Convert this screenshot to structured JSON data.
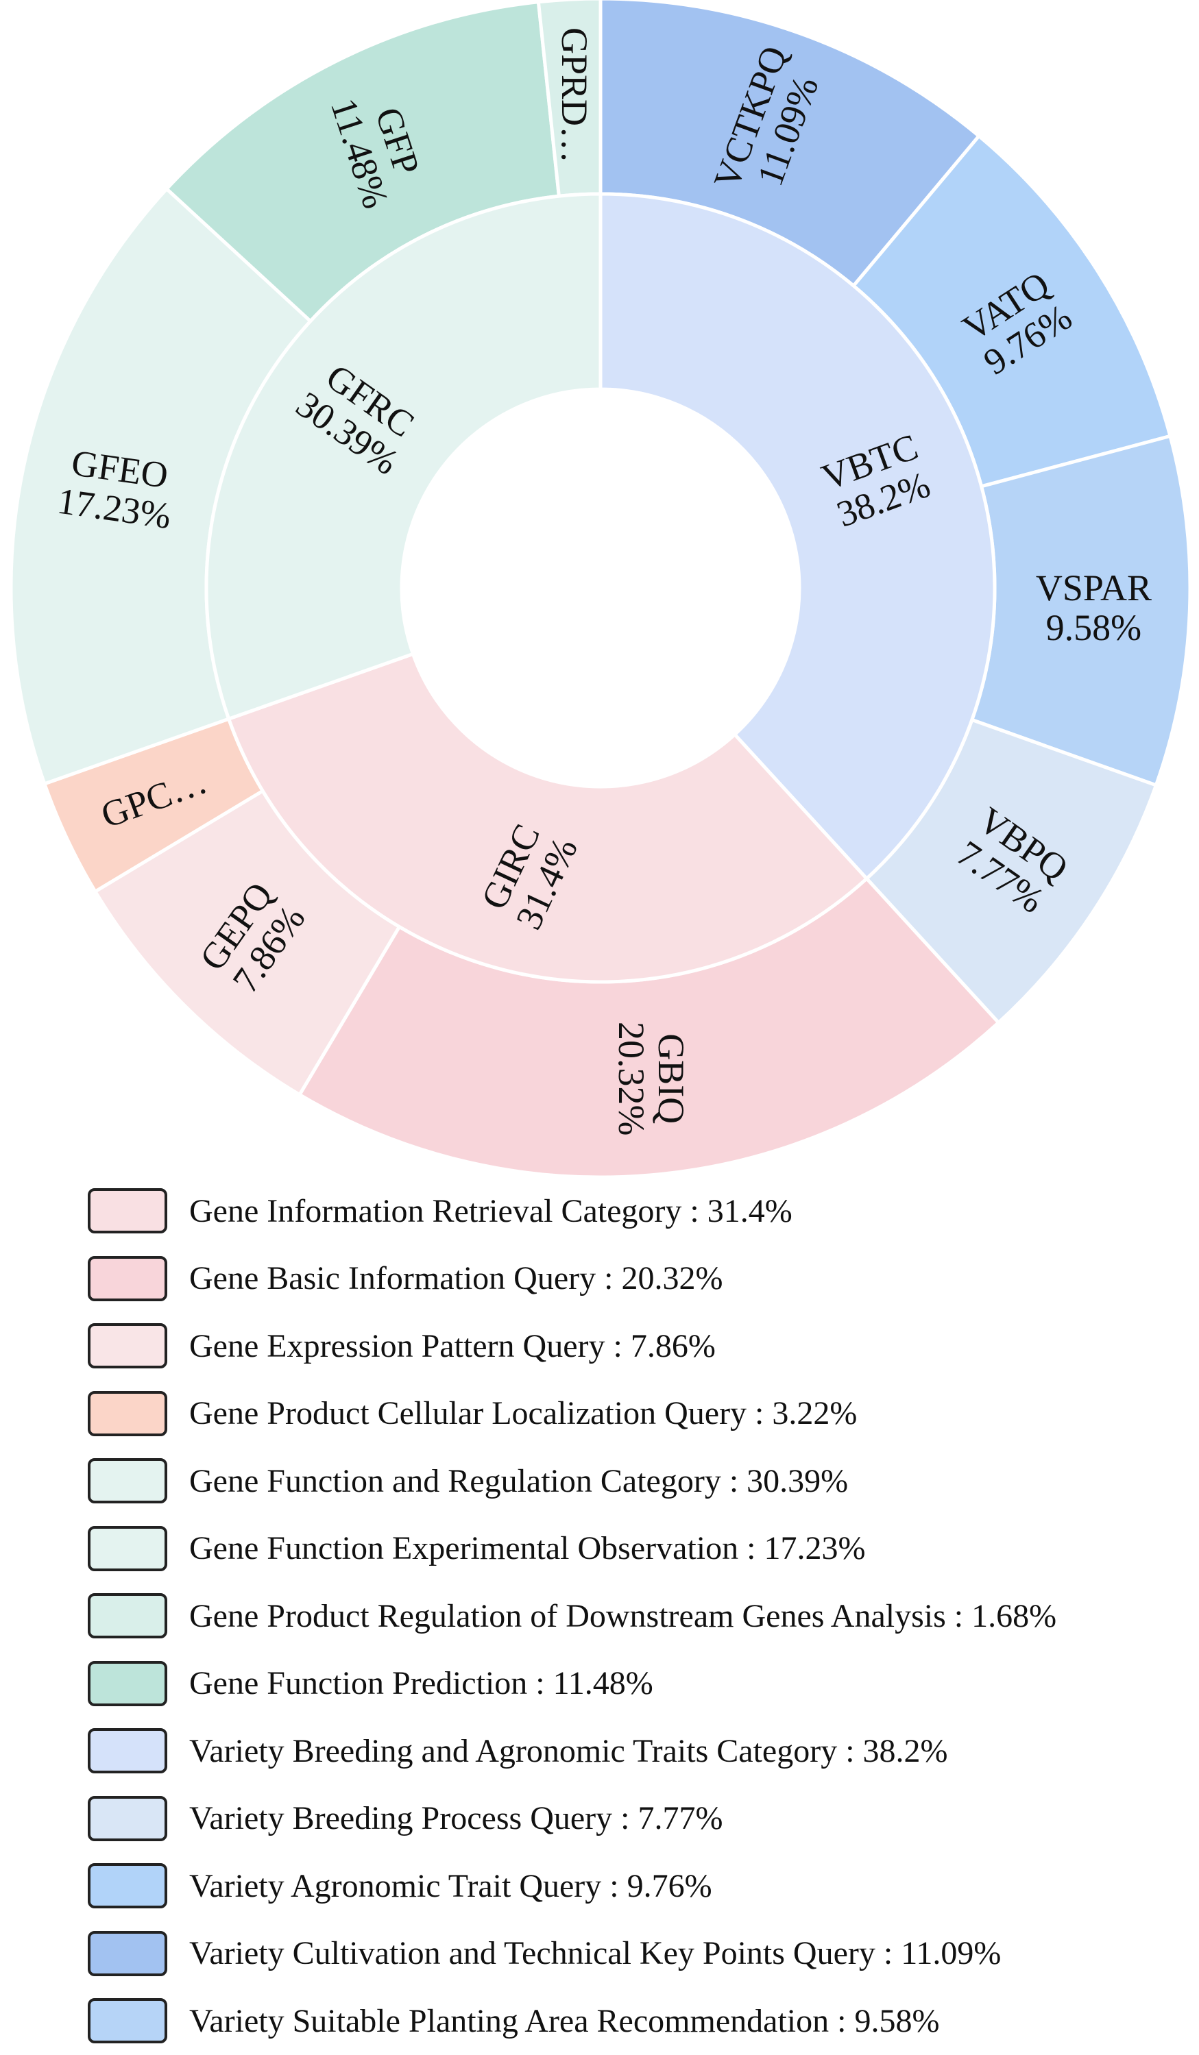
{
  "chart_data": {
    "type": "pie",
    "variant": "nested-donut",
    "start_angle_degrees_clockwise_from_top": 0,
    "inner_ring": [
      {
        "id": "VBTC",
        "label": "VBTC",
        "value_label": "38.2%",
        "value": 38.2,
        "color": "#d5e2fa",
        "name": "Variety Breeding and Agronomic Traits Category",
        "label_rotation": -20
      },
      {
        "id": "GIRC",
        "label": "GIRC",
        "value_label": "31.4%",
        "value": 31.4,
        "color": "#f9e0e3",
        "name": "Gene Information Retrieval Category",
        "label_rotation": -65
      },
      {
        "id": "GFRC",
        "label": "GFRC",
        "value_label": "30.39%",
        "value": 30.39,
        "color": "#e4f3f0",
        "name": "Gene Function and Regulation Category",
        "label_rotation": 35
      }
    ],
    "outer_ring": [
      {
        "id": "VCTKPQ",
        "label": "VCTKPQ",
        "value_label": "11.09%",
        "value": 11.09,
        "color": "#a2c2f1",
        "name": "Variety Cultivation and Technical Key Points Query",
        "label_rotation": -70
      },
      {
        "id": "VATQ",
        "label": "VATQ",
        "value_label": "9.76%",
        "value": 9.76,
        "color": "#b1d3f9",
        "name": "Variety Agronomic Trait Query",
        "label_rotation": -33
      },
      {
        "id": "VSPAR",
        "label": "VSPAR",
        "value_label": "9.58%",
        "value": 9.58,
        "color": "#b6d4f7",
        "name": "Variety Suitable Planting Area Recommendation",
        "label_rotation": 0
      },
      {
        "id": "VBPQ",
        "label": "VBPQ",
        "value_label": "7.77%",
        "value": 7.77,
        "color": "#d9e6f6",
        "name": "Variety Breeding Process Query",
        "label_rotation": 35
      },
      {
        "id": "GBIQ",
        "label": "GBIQ",
        "value_label": "20.32%",
        "value": 20.32,
        "color": "#f8d5da",
        "name": "Gene Basic Information Query",
        "label_rotation": 90
      },
      {
        "id": "GEPQ",
        "label": "GEPQ",
        "value_label": "7.86%",
        "value": 7.86,
        "color": "#f9e5e7",
        "name": "Gene Expression Pattern Query",
        "label_rotation": -55
      },
      {
        "id": "GPCLQ",
        "label": "GPC…",
        "value_label": "",
        "value": 3.22,
        "color": "#fbd5c8",
        "name": "Gene Product Cellular Localization Query",
        "label_rotation": -20
      },
      {
        "id": "GFEO",
        "label": "GFEO",
        "value_label": "17.23%",
        "value": 17.23,
        "color": "#e4f3f0",
        "name": "Gene Function Experimental Observation",
        "label_rotation": 8
      },
      {
        "id": "GFP",
        "label": "GFP",
        "value_label": "11.48%",
        "value": 11.48,
        "color": "#bde4da",
        "name": "Gene Function Prediction",
        "label_rotation": 72
      },
      {
        "id": "GPRDGA",
        "label": "GPRD…",
        "value_label": "",
        "value": 1.68,
        "color": "#d9efea",
        "name": "Gene Product Regulation of Downstream Genes Analysis",
        "label_rotation": 90
      }
    ],
    "legend": [
      {
        "text": "Gene Information Retrieval Category : 31.4%",
        "color": "#f9e0e3"
      },
      {
        "text": "Gene Basic Information Query : 20.32%",
        "color": "#f8d5da"
      },
      {
        "text": "Gene Expression Pattern Query : 7.86%",
        "color": "#f9e5e7"
      },
      {
        "text": "Gene Product Cellular Localization Query : 3.22%",
        "color": "#fbd5c8"
      },
      {
        "text": "Gene Function and Regulation Category : 30.39%",
        "color": "#e4f3f0"
      },
      {
        "text": "Gene Function Experimental Observation : 17.23%",
        "color": "#e4f3f0"
      },
      {
        "text": "Gene Product Regulation of Downstream Genes Analysis : 1.68%",
        "color": "#d9efea"
      },
      {
        "text": "Gene Function Prediction : 11.48%",
        "color": "#bde4da"
      },
      {
        "text": "Variety Breeding and Agronomic Traits Category : 38.2%",
        "color": "#d5e2fa"
      },
      {
        "text": "Variety Breeding Process Query : 7.77%",
        "color": "#d9e6f6"
      },
      {
        "text": "Variety Agronomic Trait Query : 9.76%",
        "color": "#b1d3f9"
      },
      {
        "text": "Variety Cultivation and Technical Key Points Query : 11.09%",
        "color": "#a2c2f1"
      },
      {
        "text": "Variety Suitable Planting Area Recommendation : 9.58%",
        "color": "#b6d4f7"
      }
    ],
    "legend_placement": "bottom"
  }
}
